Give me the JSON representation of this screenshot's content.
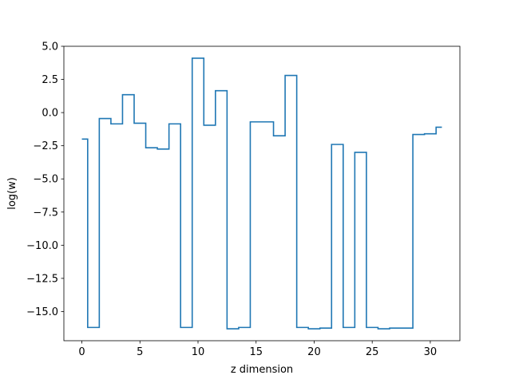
{
  "chart_data": {
    "type": "line",
    "drawstyle": "steps-mid",
    "title": "",
    "xlabel": "z dimension",
    "ylabel": "log(w)",
    "xlim": [
      -1.55,
      32.55
    ],
    "ylim": [
      -17.2,
      5.0
    ],
    "xticks": [
      0,
      5,
      10,
      15,
      20,
      25,
      30
    ],
    "xtick_labels": [
      "0",
      "5",
      "10",
      "15",
      "20",
      "25",
      "30"
    ],
    "yticks": [
      5.0,
      2.5,
      0.0,
      -2.5,
      -5.0,
      -7.5,
      -10.0,
      -12.5,
      -15.0
    ],
    "ytick_labels": [
      "5.0",
      "2.5",
      "0.0",
      "−2.5",
      "−5.0",
      "−7.5",
      "−10.0",
      "−12.5",
      "−15.0"
    ],
    "grid": false,
    "color": "#1f77b4",
    "x": [
      0,
      1,
      2,
      3,
      4,
      5,
      6,
      7,
      8,
      9,
      10,
      11,
      12,
      13,
      14,
      15,
      16,
      17,
      18,
      19,
      20,
      21,
      22,
      23,
      24,
      25,
      26,
      27,
      28,
      29,
      30,
      31
    ],
    "values": [
      -2.0,
      -16.2,
      -0.45,
      -0.85,
      1.35,
      -0.8,
      -2.65,
      -2.75,
      -0.85,
      -16.2,
      4.1,
      -0.95,
      1.65,
      -16.3,
      -16.2,
      -0.7,
      -0.7,
      -1.75,
      2.8,
      -16.2,
      -16.3,
      -16.25,
      -2.4,
      -16.2,
      -3.0,
      -16.2,
      -16.3,
      -16.25,
      -16.25,
      -1.65,
      -1.6,
      -1.1
    ]
  }
}
